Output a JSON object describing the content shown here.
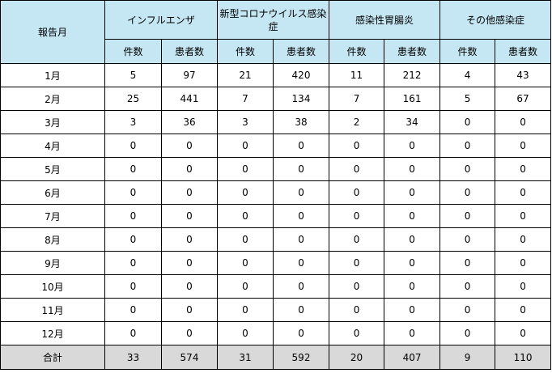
{
  "table": {
    "month_header": "報告月",
    "groups": [
      {
        "label": "インフルエンザ",
        "color": "#c5e6f3"
      },
      {
        "label": "新型コロナウイルス感染症",
        "color": "#c5e6f3"
      },
      {
        "label": "感染性胃腸炎",
        "color": "#c5e6f3"
      },
      {
        "label": "その他感染症",
        "color": "#c5e6f3"
      }
    ],
    "sub_headers": [
      "件数",
      "患者数"
    ],
    "rows": [
      {
        "month": "1月",
        "values": [
          "5",
          "97",
          "21",
          "420",
          "11",
          "212",
          "4",
          "43"
        ]
      },
      {
        "month": "2月",
        "values": [
          "25",
          "441",
          "7",
          "134",
          "7",
          "161",
          "5",
          "67"
        ]
      },
      {
        "month": "3月",
        "values": [
          "3",
          "36",
          "3",
          "38",
          "2",
          "34",
          "0",
          "0"
        ]
      },
      {
        "month": "4月",
        "values": [
          "0",
          "0",
          "0",
          "0",
          "0",
          "0",
          "0",
          "0"
        ]
      },
      {
        "month": "5月",
        "values": [
          "0",
          "0",
          "0",
          "0",
          "0",
          "0",
          "0",
          "0"
        ]
      },
      {
        "month": "6月",
        "values": [
          "0",
          "0",
          "0",
          "0",
          "0",
          "0",
          "0",
          "0"
        ]
      },
      {
        "month": "7月",
        "values": [
          "0",
          "0",
          "0",
          "0",
          "0",
          "0",
          "0",
          "0"
        ]
      },
      {
        "month": "8月",
        "values": [
          "0",
          "0",
          "0",
          "0",
          "0",
          "0",
          "0",
          "0"
        ]
      },
      {
        "month": "9月",
        "values": [
          "0",
          "0",
          "0",
          "0",
          "0",
          "0",
          "0",
          "0"
        ]
      },
      {
        "month": "10月",
        "values": [
          "0",
          "0",
          "0",
          "0",
          "0",
          "0",
          "0",
          "0"
        ]
      },
      {
        "month": "11月",
        "values": [
          "0",
          "0",
          "0",
          "0",
          "0",
          "0",
          "0",
          "0"
        ]
      },
      {
        "month": "12月",
        "values": [
          "0",
          "0",
          "0",
          "0",
          "0",
          "0",
          "0",
          "0"
        ]
      }
    ],
    "total": {
      "label": "合計",
      "values": [
        "33",
        "574",
        "31",
        "592",
        "20",
        "407",
        "9",
        "110"
      ],
      "color": "#d9d9d9"
    }
  }
}
